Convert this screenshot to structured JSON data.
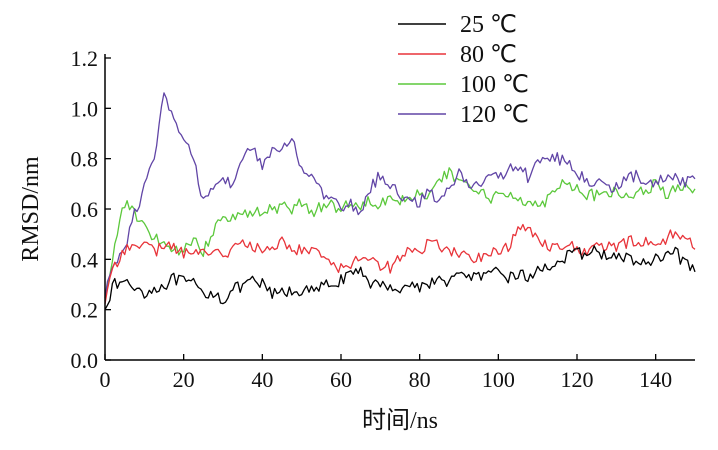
{
  "chart_data": {
    "type": "line",
    "title": "",
    "xlabel": "时间/ns",
    "ylabel": "RMSD/nm",
    "xlim": [
      0,
      150
    ],
    "ylim": [
      0,
      1.2
    ],
    "x_ticks": [
      "0",
      "20",
      "40",
      "60",
      "80",
      "100",
      "120",
      "140"
    ],
    "y_ticks": [
      "0.0",
      "0.2",
      "0.4",
      "0.6",
      "0.8",
      "1.0",
      "1.2"
    ],
    "grid": false,
    "legend_position": "top-right",
    "x": [
      0,
      2.5,
      5,
      7.5,
      10,
      12.5,
      15,
      17.5,
      20,
      22.5,
      25,
      27.5,
      30,
      32.5,
      35,
      37.5,
      40,
      42.5,
      45,
      47.5,
      50,
      52.5,
      55,
      57.5,
      60,
      62.5,
      65,
      67.5,
      70,
      72.5,
      75,
      77.5,
      80,
      82.5,
      85,
      87.5,
      90,
      92.5,
      95,
      97.5,
      100,
      102.5,
      105,
      107.5,
      110,
      112.5,
      115,
      117.5,
      120,
      122.5,
      125,
      127.5,
      130,
      132.5,
      135,
      137.5,
      140,
      142.5,
      145,
      147.5,
      150
    ],
    "series": [
      {
        "name": "25 ℃",
        "color": "#000000",
        "values": [
          0.22,
          0.3,
          0.31,
          0.29,
          0.27,
          0.28,
          0.3,
          0.32,
          0.31,
          0.3,
          0.26,
          0.27,
          0.24,
          0.28,
          0.29,
          0.31,
          0.3,
          0.26,
          0.27,
          0.27,
          0.28,
          0.27,
          0.29,
          0.3,
          0.32,
          0.33,
          0.36,
          0.31,
          0.29,
          0.3,
          0.28,
          0.3,
          0.29,
          0.31,
          0.31,
          0.32,
          0.33,
          0.34,
          0.33,
          0.33,
          0.35,
          0.33,
          0.34,
          0.33,
          0.35,
          0.38,
          0.38,
          0.41,
          0.42,
          0.43,
          0.43,
          0.42,
          0.4,
          0.41,
          0.39,
          0.38,
          0.4,
          0.4,
          0.43,
          0.38,
          0.35
        ]
      },
      {
        "name": "80 ℃",
        "color": "#e8343a",
        "values": [
          0.24,
          0.37,
          0.44,
          0.48,
          0.45,
          0.43,
          0.46,
          0.44,
          0.43,
          0.42,
          0.43,
          0.44,
          0.42,
          0.44,
          0.46,
          0.45,
          0.43,
          0.45,
          0.47,
          0.45,
          0.43,
          0.44,
          0.42,
          0.4,
          0.36,
          0.38,
          0.42,
          0.4,
          0.38,
          0.37,
          0.41,
          0.44,
          0.42,
          0.47,
          0.46,
          0.43,
          0.42,
          0.41,
          0.41,
          0.42,
          0.43,
          0.45,
          0.51,
          0.53,
          0.48,
          0.46,
          0.45,
          0.47,
          0.43,
          0.43,
          0.45,
          0.45,
          0.45,
          0.46,
          0.48,
          0.47,
          0.45,
          0.48,
          0.51,
          0.49,
          0.44
        ]
      },
      {
        "name": "100 ℃",
        "color": "#5cc83c",
        "values": [
          0.25,
          0.45,
          0.63,
          0.58,
          0.52,
          0.48,
          0.47,
          0.42,
          0.45,
          0.48,
          0.43,
          0.52,
          0.58,
          0.57,
          0.58,
          0.58,
          0.59,
          0.6,
          0.61,
          0.6,
          0.62,
          0.59,
          0.61,
          0.62,
          0.6,
          0.63,
          0.61,
          0.64,
          0.62,
          0.66,
          0.64,
          0.65,
          0.66,
          0.65,
          0.71,
          0.74,
          0.71,
          0.7,
          0.67,
          0.64,
          0.65,
          0.66,
          0.65,
          0.63,
          0.61,
          0.64,
          0.7,
          0.71,
          0.68,
          0.66,
          0.65,
          0.67,
          0.66,
          0.65,
          0.66,
          0.67,
          0.7,
          0.66,
          0.67,
          0.68,
          0.68
        ]
      },
      {
        "name": "120 ℃",
        "color": "#6145a6",
        "values": [
          0.26,
          0.39,
          0.45,
          0.58,
          0.68,
          0.8,
          1.05,
          0.95,
          0.88,
          0.8,
          0.63,
          0.7,
          0.74,
          0.68,
          0.8,
          0.85,
          0.76,
          0.82,
          0.84,
          0.89,
          0.76,
          0.72,
          0.66,
          0.64,
          0.6,
          0.62,
          0.58,
          0.68,
          0.74,
          0.7,
          0.65,
          0.63,
          0.63,
          0.68,
          0.62,
          0.69,
          0.74,
          0.7,
          0.71,
          0.72,
          0.73,
          0.75,
          0.77,
          0.73,
          0.8,
          0.79,
          0.8,
          0.79,
          0.74,
          0.71,
          0.7,
          0.7,
          0.68,
          0.72,
          0.73,
          0.69,
          0.71,
          0.72,
          0.72,
          0.7,
          0.72
        ]
      }
    ]
  }
}
